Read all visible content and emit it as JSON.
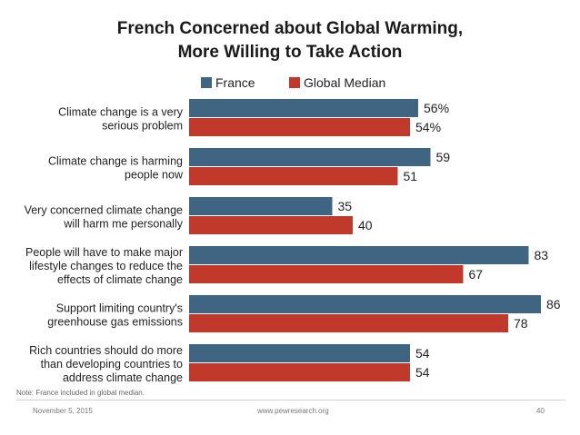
{
  "title_line1": "French Concerned about Global Warming,",
  "title_line2": "More Willing to Take Action",
  "note": "Note: France included in global median.",
  "footer": {
    "date": "November 5, 2015",
    "url": "www.pewresearch.org",
    "page": "40"
  },
  "colors": {
    "france": "#3f6583",
    "global_median": "#c0392b"
  },
  "chart_data": {
    "type": "bar",
    "orientation": "horizontal",
    "categories": [
      [
        "Climate change is a very",
        "serious problem"
      ],
      [
        "Climate change is harming",
        "people now"
      ],
      [
        "Very concerned climate change",
        "will harm me personally"
      ],
      [
        "People will have to make major",
        "lifestyle changes to reduce the",
        "effects of climate change"
      ],
      [
        "Support limiting country's",
        "greenhouse gas emissions"
      ],
      [
        "Rich countries should do more",
        "than developing countries to",
        "address climate change"
      ]
    ],
    "series": [
      {
        "name": "France",
        "values": [
          56,
          59,
          35,
          83,
          86,
          54
        ],
        "labels": [
          "56%",
          "59",
          "35",
          "83",
          "86",
          "54"
        ]
      },
      {
        "name": "Global Median",
        "values": [
          54,
          51,
          40,
          67,
          78,
          54
        ],
        "labels": [
          "54%",
          "51",
          "40",
          "67",
          "78",
          "54"
        ]
      }
    ],
    "xlim": [
      0,
      100
    ],
    "legend": "top",
    "grid": false
  }
}
